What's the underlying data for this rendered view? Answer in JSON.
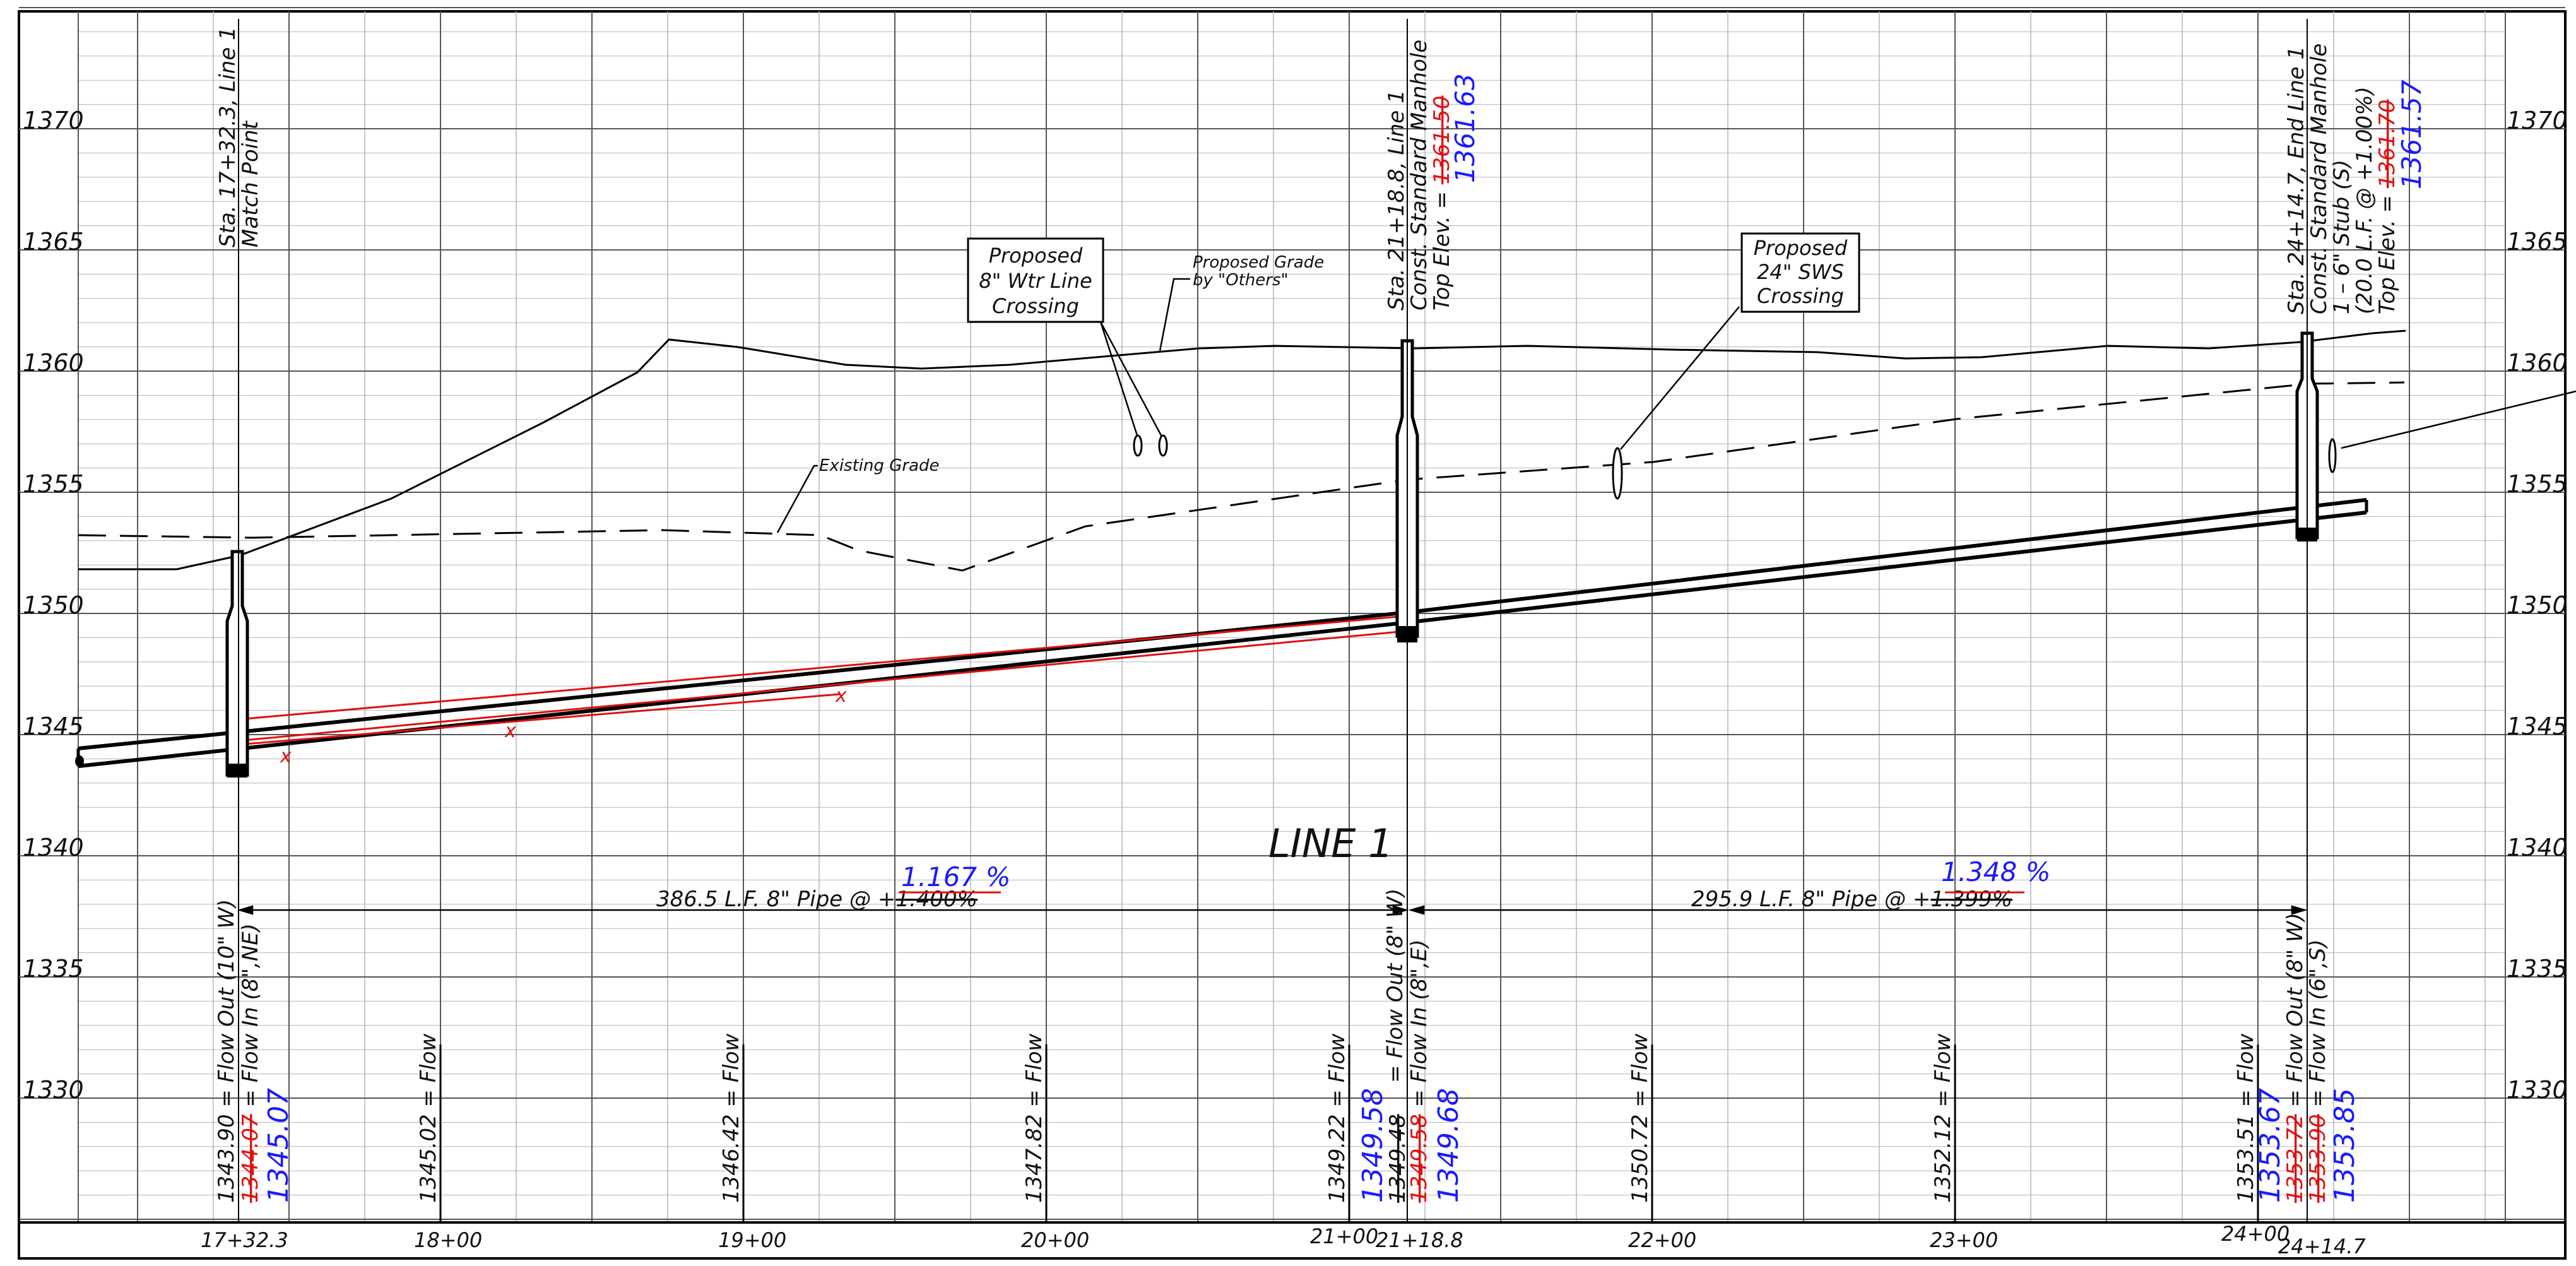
{
  "drawing": {
    "title": "LINE 1",
    "elevation_labels": [
      "1370",
      "1365",
      "1360",
      "1355",
      "1350",
      "1345",
      "1340",
      "1335",
      "1330"
    ],
    "station_labels": [
      "17+32.3",
      "18+00",
      "19+00",
      "20+00",
      "21+00",
      "21+18.8",
      "22+00",
      "23+00",
      "24+00",
      "24+14.7"
    ]
  },
  "structures": {
    "mh_start": {
      "lines": [
        "Sta. 17+32.3, Line 1",
        "Match Point"
      ]
    },
    "mh_mid": {
      "lines": [
        "Sta. 21+18.8, Line 1",
        "Const. Standard Manhole"
      ],
      "top_prefix": "Top Elev. = ",
      "top_old": "1361.50",
      "top_new": "1361.63"
    },
    "mh_end": {
      "lines": [
        "Sta. 24+14.7, End Line 1",
        "Const. Standard Manhole",
        "1 – 6\" Stub (S)",
        "(20.0 L.F. @ +1.00%)"
      ],
      "top_prefix": "Top Elev. = ",
      "top_old": "1361.70",
      "top_new": "1361.57"
    }
  },
  "callouts": {
    "water_crossing": [
      "Proposed",
      "8\" Wtr Line",
      "Crossing"
    ],
    "sws_crossing": [
      "Proposed",
      "24\" SWS",
      "Crossing"
    ],
    "proposed_grade": [
      "Proposed Grade",
      "by \"Others\""
    ],
    "existing_grade": "Existing Grade"
  },
  "pipes": {
    "run1": {
      "label": "386.5 L.F. 8\" Pipe @ +",
      "old_slope": "1.400%",
      "new_slope": "1.167 %"
    },
    "run2": {
      "label": "295.9 L.F. 8\" Pipe @ +",
      "old_slope": "1.399%",
      "new_slope": "1.348 %"
    }
  },
  "flowlines": {
    "start_out": "1343.90 = Flow Out (10\" W)",
    "start_in_old": "1344.07",
    "start_in_suffix": " = Flow In (8\",NE)",
    "start_in_new": "1345.07",
    "f18": "1345.02 = Flow",
    "f19": "1346.42 = Flow",
    "f20": "1347.82 = Flow",
    "f21": "1349.22 = Flow",
    "mid_out_new": "1349.58",
    "mid_out_suffix": " = Flow Out (8\" W)",
    "mid_in_old": "1349.48",
    "mid_in_old2": "1349.58",
    "mid_in_suffix": " = Flow In (8\",E)",
    "mid_in_new": "1349.68",
    "f22": "1350.72 = Flow",
    "f23": "1352.12 = Flow",
    "f24": "1353.51 = Flow",
    "end_out_new": "1353.67",
    "end_out_old": "1353.72",
    "end_out_suffix": " = Flow Out (8\" W)",
    "end_in_old": "1353.90",
    "end_in_suffix": " = Flow In (6\",S)",
    "end_in_new": "1353.85"
  },
  "colors": {
    "grid_major": "#555555",
    "grid_minor": "#b5b5b5",
    "pipe": "#000000",
    "redline": "#e01010",
    "revision_text": "#1a1aff"
  }
}
